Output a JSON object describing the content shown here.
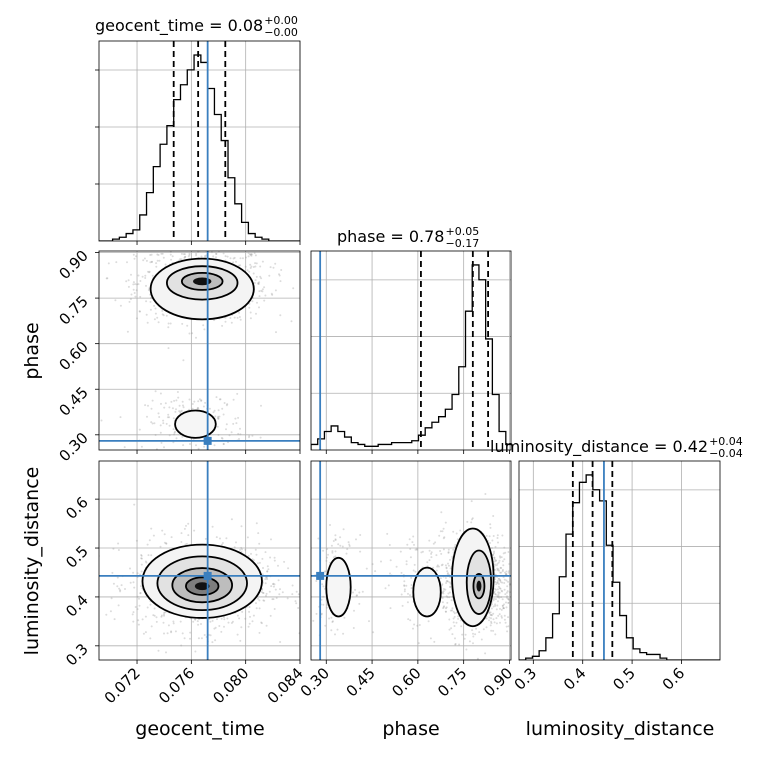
{
  "chart_data": {
    "type": "corner",
    "parameters": [
      "geocent_time",
      "phase",
      "luminosity_distance"
    ],
    "truth_color": "#3a7fbf",
    "truths": {
      "geocent_time": 0.0772,
      "phase": 0.28,
      "luminosity_distance": 0.443
    },
    "titles": [
      {
        "param": "geocent_time",
        "text": "geocent_time = 0.08",
        "sup": "+0.00",
        "sub": "−0.00"
      },
      {
        "param": "phase",
        "text": "phase = 0.78",
        "sup": "+0.05",
        "sub": "−0.17"
      },
      {
        "param": "luminosity_distance",
        "text": "luminosity_distance = 0.42",
        "sup": "+0.04",
        "sub": "−0.04"
      }
    ],
    "axis_ranges": {
      "geocent_time": [
        0.0692,
        0.084
      ],
      "phase": [
        0.25,
        0.905
      ],
      "luminosity_distance": [
        0.271,
        0.678
      ]
    },
    "ticks": {
      "geocent_time": [
        "0.072",
        "0.076",
        "0.080",
        "0.084"
      ],
      "phase": [
        "0.30",
        "0.45",
        "0.60",
        "0.75",
        "0.90"
      ],
      "luminosity_distance": [
        "0.3",
        "0.4",
        "0.5",
        "0.6"
      ]
    },
    "xlabels": [
      "geocent_time",
      "phase",
      "luminosity_distance"
    ],
    "ylabels": [
      "phase",
      "luminosity_distance"
    ],
    "histograms": [
      {
        "param": "geocent_time",
        "bins": [
          0.0692,
          0.0697,
          0.0702,
          0.0707,
          0.0712,
          0.0717,
          0.0722,
          0.0727,
          0.0732,
          0.0737,
          0.0742,
          0.0747,
          0.0752,
          0.0757,
          0.0762,
          0.0767,
          0.0772,
          0.0777,
          0.0782,
          0.0787,
          0.0792,
          0.0797,
          0.0802,
          0.0807,
          0.0812,
          0.0817,
          0.0822,
          0.0827,
          0.0832,
          0.0837,
          0.0842
        ],
        "counts": [
          0.0,
          0.0,
          0.01,
          0.02,
          0.04,
          0.06,
          0.14,
          0.26,
          0.4,
          0.52,
          0.62,
          0.76,
          0.84,
          0.92,
          1.0,
          0.96,
          0.82,
          0.68,
          0.54,
          0.34,
          0.2,
          0.1,
          0.04,
          0.02,
          0.01,
          0.0,
          0.0,
          0.0,
          0.0,
          0.0
        ],
        "quantiles": [
          0.0747,
          0.0765,
          0.0785
        ]
      },
      {
        "param": "phase",
        "bins": [
          0.25,
          0.272,
          0.294,
          0.316,
          0.338,
          0.36,
          0.382,
          0.404,
          0.426,
          0.448,
          0.47,
          0.492,
          0.514,
          0.536,
          0.558,
          0.58,
          0.602,
          0.624,
          0.646,
          0.668,
          0.69,
          0.712,
          0.734,
          0.756,
          0.778,
          0.8,
          0.822,
          0.844,
          0.866,
          0.888,
          0.91
        ],
        "counts": [
          0.03,
          0.06,
          0.1,
          0.13,
          0.1,
          0.07,
          0.04,
          0.03,
          0.02,
          0.02,
          0.03,
          0.03,
          0.04,
          0.04,
          0.04,
          0.05,
          0.08,
          0.12,
          0.15,
          0.18,
          0.22,
          0.3,
          0.45,
          0.75,
          1.0,
          0.92,
          0.6,
          0.3,
          0.1,
          0.03
        ],
        "quantiles": [
          0.61,
          0.78,
          0.83
        ]
      },
      {
        "param": "luminosity_distance",
        "bins": [
          0.271,
          0.2846,
          0.2982,
          0.3118,
          0.3254,
          0.339,
          0.3526,
          0.3662,
          0.3798,
          0.3934,
          0.407,
          0.4206,
          0.4342,
          0.4478,
          0.4614,
          0.475,
          0.4886,
          0.5022,
          0.5158,
          0.5294,
          0.543,
          0.5566,
          0.5702,
          0.5838,
          0.5974,
          0.611,
          0.6246,
          0.6382,
          0.6518,
          0.6654,
          0.679
        ],
        "counts": [
          0.0,
          0.01,
          0.02,
          0.05,
          0.12,
          0.25,
          0.45,
          0.68,
          0.85,
          0.96,
          1.0,
          0.92,
          0.86,
          0.62,
          0.42,
          0.24,
          0.12,
          0.06,
          0.04,
          0.03,
          0.03,
          0.01,
          0.0,
          0.0,
          0.0,
          0.0,
          0.0,
          0.0,
          0.0,
          0.0
        ],
        "quantiles": [
          0.38,
          0.42,
          0.46
        ]
      }
    ],
    "pairs": [
      {
        "x": "geocent_time",
        "y": "phase",
        "modes": [
          {
            "cx": 0.0768,
            "cy": 0.8,
            "sx": 0.0021,
            "sy": 0.055,
            "weight": 0.8
          },
          {
            "cx": 0.0763,
            "cy": 0.34,
            "sx": 0.0016,
            "sy": 0.04,
            "weight": 0.2
          }
        ],
        "contours": [
          {
            "cx": 0.0768,
            "cy": 0.805,
            "rx": 0.0015,
            "ry": 0.028
          },
          {
            "cx": 0.0768,
            "cy": 0.8,
            "rx": 0.0026,
            "ry": 0.055
          },
          {
            "cx": 0.0768,
            "cy": 0.78,
            "rx": 0.0038,
            "ry": 0.1
          },
          {
            "cx": 0.0763,
            "cy": 0.335,
            "rx": 0.0015,
            "ry": 0.045
          }
        ]
      },
      {
        "x": "geocent_time",
        "y": "luminosity_distance",
        "modes": [
          {
            "cx": 0.0768,
            "cy": 0.425,
            "sx": 0.0022,
            "sy": 0.04,
            "weight": 1.0
          }
        ],
        "contours": [
          {
            "cx": 0.0768,
            "cy": 0.422,
            "rx": 0.0012,
            "ry": 0.018
          },
          {
            "cx": 0.0768,
            "cy": 0.424,
            "rx": 0.0022,
            "ry": 0.035
          },
          {
            "cx": 0.0768,
            "cy": 0.428,
            "rx": 0.0033,
            "ry": 0.055
          },
          {
            "cx": 0.0768,
            "cy": 0.432,
            "rx": 0.0044,
            "ry": 0.075
          }
        ]
      },
      {
        "x": "phase",
        "y": "luminosity_distance",
        "modes": [
          {
            "cx": 0.8,
            "cy": 0.425,
            "sx": 0.05,
            "sy": 0.045,
            "weight": 0.7
          },
          {
            "cx": 0.33,
            "cy": 0.43,
            "sx": 0.03,
            "sy": 0.04,
            "weight": 0.15
          },
          {
            "cx": 0.62,
            "cy": 0.43,
            "sx": 0.06,
            "sy": 0.045,
            "weight": 0.15
          }
        ],
        "contours": [
          {
            "cx": 0.8,
            "cy": 0.422,
            "rx": 0.018,
            "ry": 0.025
          },
          {
            "cx": 0.8,
            "cy": 0.43,
            "rx": 0.04,
            "ry": 0.065
          },
          {
            "cx": 0.78,
            "cy": 0.44,
            "rx": 0.068,
            "ry": 0.1
          },
          {
            "cx": 0.34,
            "cy": 0.42,
            "rx": 0.04,
            "ry": 0.06
          },
          {
            "cx": 0.63,
            "cy": 0.41,
            "rx": 0.045,
            "ry": 0.05
          }
        ]
      }
    ]
  }
}
